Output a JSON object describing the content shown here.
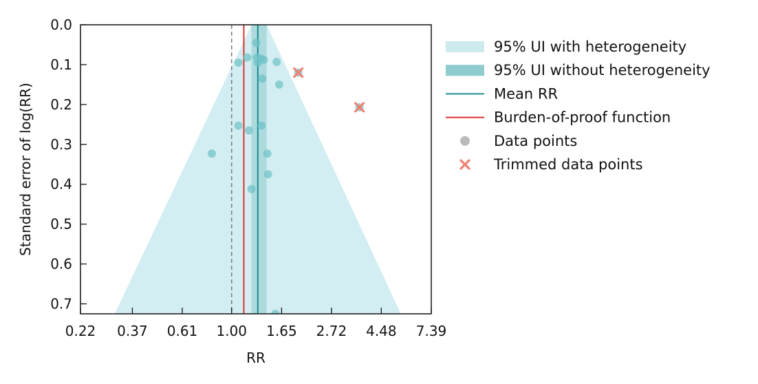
{
  "chart_data": {
    "type": "scatter",
    "title": "",
    "xlabel": "RR",
    "ylabel": "Standard error of log(RR)",
    "x_scale": "log",
    "x_ticks": [
      0.22,
      0.37,
      0.61,
      1.0,
      1.65,
      2.72,
      4.48,
      7.39
    ],
    "x_tick_labels": [
      "0.22",
      "0.37",
      "0.61",
      "1.00",
      "1.65",
      "2.72",
      "4.48",
      "7.39"
    ],
    "xlim": [
      0.22,
      7.39
    ],
    "y_ticks": [
      0.0,
      0.1,
      0.2,
      0.3,
      0.4,
      0.5,
      0.6,
      0.7
    ],
    "y_tick_labels": [
      "0.0",
      "0.1",
      "0.2",
      "0.3",
      "0.4",
      "0.5",
      "0.6",
      "0.7"
    ],
    "ylim": [
      0.0,
      0.725
    ],
    "y_inverted": true,
    "mean_rr": 1.3,
    "burden_of_proof_rr": 1.13,
    "null_rr": 1.0,
    "ui_without_heterogeneity": [
      1.22,
      1.42
    ],
    "ui_with_heterogeneity_base": [
      1.22,
      1.42
    ],
    "ui_with_heterogeneity_at_ylim": [
      0.31,
      5.45
    ],
    "data_points": [
      {
        "rr": 1.28,
        "se": 0.045
      },
      {
        "rr": 1.17,
        "se": 0.082
      },
      {
        "rr": 1.29,
        "se": 0.082
      },
      {
        "rr": 1.34,
        "se": 0.085
      },
      {
        "rr": 1.38,
        "se": 0.088
      },
      {
        "rr": 1.07,
        "se": 0.095
      },
      {
        "rr": 1.3,
        "se": 0.095
      },
      {
        "rr": 1.57,
        "se": 0.093
      },
      {
        "rr": 1.36,
        "se": 0.135
      },
      {
        "rr": 1.61,
        "se": 0.15
      },
      {
        "rr": 1.07,
        "se": 0.253
      },
      {
        "rr": 1.35,
        "se": 0.253
      },
      {
        "rr": 1.19,
        "se": 0.265
      },
      {
        "rr": 0.82,
        "se": 0.323
      },
      {
        "rr": 1.43,
        "se": 0.323
      },
      {
        "rr": 1.44,
        "se": 0.375
      },
      {
        "rr": 1.22,
        "se": 0.412
      },
      {
        "rr": 1.55,
        "se": 0.725
      }
    ],
    "trimmed_points": [
      {
        "rr": 1.95,
        "se": 0.12
      },
      {
        "rr": 3.6,
        "se": 0.207
      }
    ],
    "legend_position": "right",
    "legend": [
      {
        "label": "95% UI with heterogeneity",
        "type": "band",
        "color": "#cdeaee"
      },
      {
        "label": "95% UI without heterogeneity",
        "type": "band",
        "color": "#8fcbcf"
      },
      {
        "label": "Mean RR",
        "type": "line",
        "color": "#1a8a8f"
      },
      {
        "label": "Burden-of-proof function",
        "type": "line",
        "color": "#e03030"
      },
      {
        "label": "Data points",
        "type": "dot",
        "color": "#bbbbbb"
      },
      {
        "label": "Trimmed data points",
        "type": "cross",
        "color": "#f08070"
      }
    ],
    "colors": {
      "outer_band": "#d3eef2",
      "inner_band": "#9fd3d6",
      "mean_line": "#1a8a8f",
      "bop_line": "#e03030",
      "null_line": "#808080",
      "point": "#6cc2c6",
      "trimmed": "#f08070"
    }
  }
}
